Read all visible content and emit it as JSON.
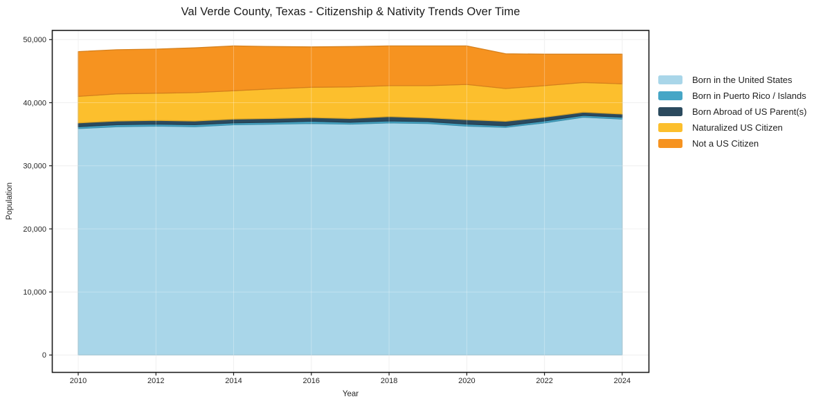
{
  "title": "Val Verde County, Texas - Citizenship & Nativity Trends Over Time",
  "chart_data": {
    "type": "area",
    "stacked": true,
    "title": "Val Verde County, Texas - Citizenship & Nativity Trends Over Time",
    "xlabel": "Year",
    "ylabel": "Population",
    "grid": true,
    "legend_position": "right-outside",
    "background_color": "#ffffff",
    "ylim": [
      0,
      50000
    ],
    "x": [
      2010,
      2011,
      2012,
      2013,
      2014,
      2015,
      2016,
      2017,
      2018,
      2019,
      2020,
      2021,
      2022,
      2023,
      2024
    ],
    "x_tick_labels": [
      "2010",
      "2012",
      "2014",
      "2016",
      "2018",
      "2020",
      "2022",
      "2024"
    ],
    "x_tick_values": [
      2010,
      2012,
      2014,
      2016,
      2018,
      2020,
      2022,
      2024
    ],
    "y_tick_labels": [
      "0",
      "10,000",
      "20,000",
      "30,000",
      "40,000",
      "50,000"
    ],
    "y_tick_values": [
      0,
      10000,
      20000,
      30000,
      40000,
      50000
    ],
    "series": [
      {
        "name": "Born in the United States",
        "color": "#a9d6e9",
        "values": [
          35900,
          36200,
          36300,
          36200,
          36500,
          36600,
          36700,
          36600,
          36800,
          36700,
          36300,
          36100,
          36800,
          37700,
          37400
        ]
      },
      {
        "name": "Born in Puerto Rico / Islands",
        "color": "#46a6c6",
        "values": [
          300,
          300,
          300,
          300,
          300,
          300,
          350,
          300,
          300,
          300,
          300,
          250,
          300,
          300,
          300
        ]
      },
      {
        "name": "Born Abroad of US Parent(s)",
        "color": "#2b4a5e",
        "values": [
          600,
          600,
          600,
          600,
          600,
          600,
          600,
          600,
          700,
          600,
          700,
          700,
          600,
          500,
          500
        ]
      },
      {
        "name": "Naturalized US Citizen",
        "color": "#fcbf2d",
        "values": [
          4200,
          4300,
          4300,
          4500,
          4500,
          4700,
          4800,
          5000,
          4900,
          5100,
          5600,
          5200,
          5000,
          4700,
          4800
        ]
      },
      {
        "name": "Not a US Citizen",
        "color": "#f69320",
        "values": [
          7100,
          7000,
          7000,
          7100,
          7100,
          6700,
          6400,
          6400,
          6300,
          6300,
          6100,
          5500,
          5000,
          4500,
          4700
        ]
      }
    ]
  }
}
